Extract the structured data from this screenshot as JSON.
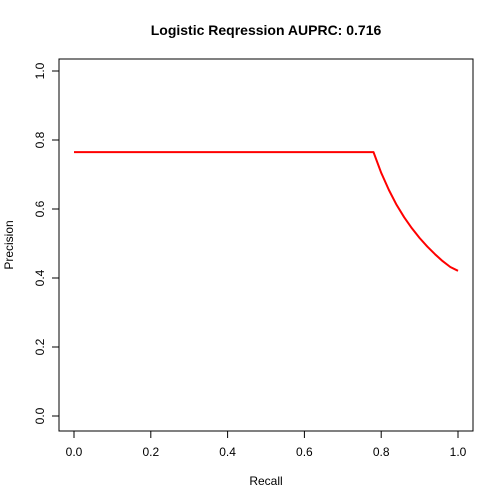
{
  "chart_data": {
    "type": "line",
    "title": "Logistic Reqression AUPRC: 0.716",
    "xlabel": "Recall",
    "ylabel": "Precision",
    "xlim": [
      0,
      1
    ],
    "ylim": [
      0,
      1
    ],
    "xticks": [
      "0.0",
      "0.2",
      "0.4",
      "0.6",
      "0.8",
      "1.0"
    ],
    "yticks": [
      "0.0",
      "0.2",
      "0.4",
      "0.6",
      "0.8",
      "1.0"
    ],
    "grid": false,
    "series": [
      {
        "color": "#ff0000",
        "x": [
          0.0,
          0.78,
          0.8,
          0.82,
          0.84,
          0.86,
          0.88,
          0.9,
          0.92,
          0.94,
          0.96,
          0.98,
          1.0
        ],
        "y": [
          0.765,
          0.765,
          0.705,
          0.655,
          0.612,
          0.576,
          0.544,
          0.516,
          0.491,
          0.469,
          0.449,
          0.432,
          0.421
        ]
      }
    ]
  }
}
